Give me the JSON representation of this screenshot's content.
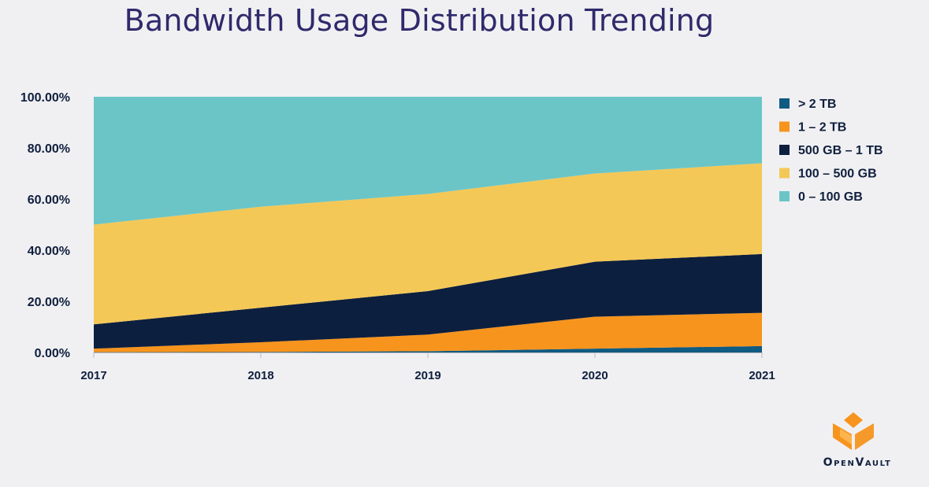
{
  "title": "Bandwidth Usage Distribution Trending",
  "logo_text": "OpenVault",
  "chart_data": {
    "type": "area",
    "stacked": true,
    "title": "Bandwidth Usage Distribution Trending",
    "categories": [
      "2017",
      "2018",
      "2019",
      "2020",
      "2021"
    ],
    "ylim": [
      0,
      100
    ],
    "yticks": [
      "0.00%",
      "20.00%",
      "40.00%",
      "60.00%",
      "80.00%",
      "100.00%"
    ],
    "legend_position": "right",
    "series": [
      {
        "name": "> 2 TB",
        "color": "#0f5b82",
        "values": [
          0.1,
          0.2,
          0.5,
          1.5,
          2.5
        ]
      },
      {
        "name": "1 – 2 TB",
        "color": "#f7941d",
        "values": [
          1.4,
          3.8,
          6.5,
          12.5,
          13.0
        ]
      },
      {
        "name": "500 GB – 1 TB",
        "color": "#0d1f3e",
        "values": [
          9.5,
          13.5,
          17.0,
          21.5,
          23.0
        ]
      },
      {
        "name": "100 – 500 GB",
        "color": "#f4c857",
        "values": [
          39.0,
          39.5,
          38.0,
          34.5,
          35.5
        ]
      },
      {
        "name": "0 – 100 GB",
        "color": "#6bc5c7",
        "values": [
          50.0,
          43.0,
          38.0,
          30.0,
          26.0
        ]
      }
    ]
  }
}
